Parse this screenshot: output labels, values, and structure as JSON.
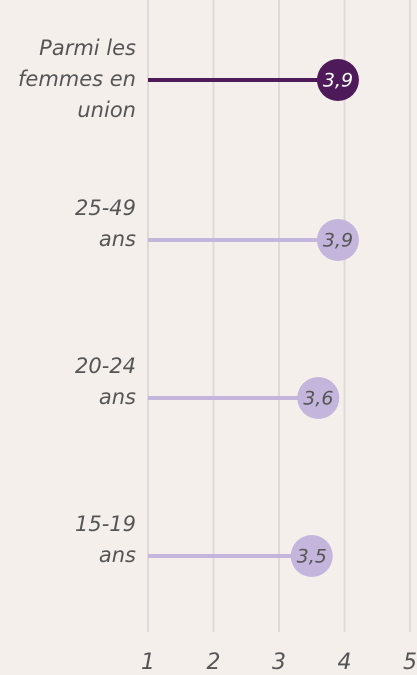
{
  "chart_data": {
    "type": "lollipop",
    "categories": [
      "Parmi les\nfemmes en\nunion",
      "25-49\nans",
      "20-24\nans",
      "15-19\nans"
    ],
    "values": [
      3.9,
      3.9,
      3.6,
      3.5
    ],
    "value_labels": [
      "3,9",
      "3,9",
      "3,6",
      "3,5"
    ],
    "colors": [
      "#4f1a5a",
      "#c3b5db",
      "#c3b5db",
      "#c3b5db"
    ],
    "label_colors": [
      "#ffffff",
      "#555555",
      "#555555",
      "#555555"
    ],
    "xlim": [
      1,
      5
    ],
    "xticks": [
      1,
      2,
      3,
      4,
      5
    ],
    "grid": true
  }
}
